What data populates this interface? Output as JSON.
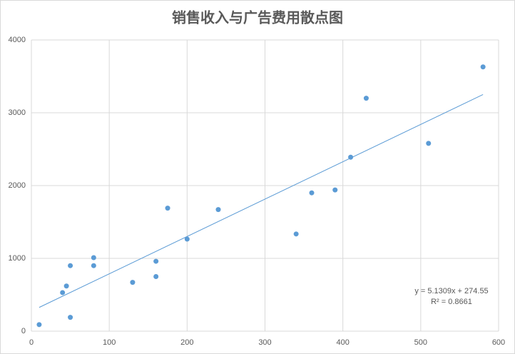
{
  "chart_data": {
    "type": "scatter",
    "title": "销售收入与广告费用散点图",
    "x": [
      10,
      40,
      45,
      50,
      50,
      80,
      80,
      130,
      160,
      160,
      175,
      200,
      240,
      340,
      360,
      390,
      410,
      430,
      510,
      580
    ],
    "values": [
      90,
      530,
      620,
      900,
      190,
      1010,
      900,
      670,
      960,
      750,
      1690,
      1265,
      1670,
      1335,
      1900,
      1940,
      2390,
      3200,
      2580,
      3630
    ],
    "color": "#5b9bd5",
    "xlim": [
      0,
      600
    ],
    "xticks": [
      0,
      100,
      200,
      300,
      400,
      500,
      600
    ],
    "ylim": [
      0,
      4000
    ],
    "yticks": [
      0,
      1000,
      2000,
      3000,
      4000
    ],
    "grid": true,
    "trendline": {
      "equation": "y = 5.1309x + 274.55",
      "slope": 5.1309,
      "intercept": 274.55,
      "r_squared_label": "R² = 0.8661",
      "r_squared": 0.8661
    }
  }
}
